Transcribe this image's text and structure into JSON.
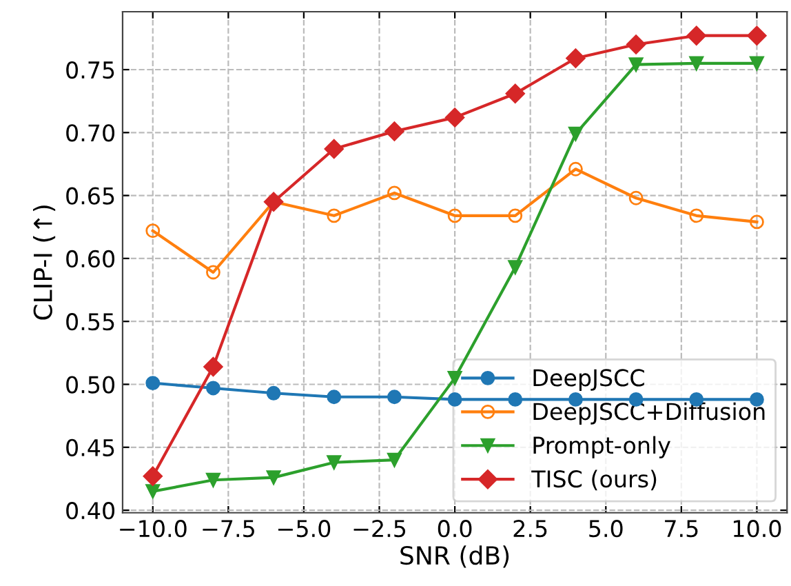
{
  "chart_data": {
    "type": "line",
    "xlabel": "SNR (dB)",
    "ylabel": "CLIP-I (↑)",
    "x": [
      -10,
      -8,
      -6,
      -4,
      -2,
      0,
      2,
      4,
      6,
      8,
      10
    ],
    "series": [
      {
        "name": "DeepJSCC",
        "color": "#1f77b4",
        "marker": "circle",
        "values": [
          0.501,
          0.497,
          0.493,
          0.49,
          0.49,
          0.488,
          0.488,
          0.488,
          0.488,
          0.488,
          0.488
        ]
      },
      {
        "name": "DeepJSCC+Diffusion",
        "color": "#ff7f0e",
        "marker": "circle",
        "values": [
          0.622,
          0.589,
          0.645,
          0.634,
          0.652,
          0.634,
          0.634,
          0.671,
          0.648,
          0.634,
          0.629
        ]
      },
      {
        "name": "Prompt-only",
        "color": "#2ca02c",
        "marker": "triangle",
        "values": [
          0.415,
          0.424,
          0.426,
          0.438,
          0.44,
          0.505,
          0.593,
          0.699,
          0.754,
          0.755,
          0.755
        ]
      },
      {
        "name": "TISC (ours)",
        "color": "#d62728",
        "marker": "diamond",
        "values": [
          0.427,
          0.514,
          0.645,
          0.687,
          0.701,
          0.712,
          0.731,
          0.759,
          0.77,
          0.777,
          0.777
        ]
      }
    ],
    "xlim": [
      -11,
      11
    ],
    "ylim": [
      0.398,
      0.796
    ],
    "xticks": [
      {
        "value": -10,
        "label": "−10.0"
      },
      {
        "value": -7.5,
        "label": "−7.5"
      },
      {
        "value": -5,
        "label": "−5.0"
      },
      {
        "value": -2.5,
        "label": "−2.5"
      },
      {
        "value": 0,
        "label": "0.0"
      },
      {
        "value": 2.5,
        "label": "2.5"
      },
      {
        "value": 5,
        "label": "5.0"
      },
      {
        "value": 7.5,
        "label": "7.5"
      },
      {
        "value": 10,
        "label": "10.0"
      }
    ],
    "yticks": [
      {
        "value": 0.4,
        "label": "0.40"
      },
      {
        "value": 0.45,
        "label": "0.45"
      },
      {
        "value": 0.5,
        "label": "0.50"
      },
      {
        "value": 0.55,
        "label": "0.55"
      },
      {
        "value": 0.6,
        "label": "0.60"
      },
      {
        "value": 0.65,
        "label": "0.65"
      },
      {
        "value": 0.7,
        "label": "0.70"
      },
      {
        "value": 0.75,
        "label": "0.75"
      }
    ],
    "grid": true,
    "legend": "bottom right",
    "line_style": "solid"
  }
}
